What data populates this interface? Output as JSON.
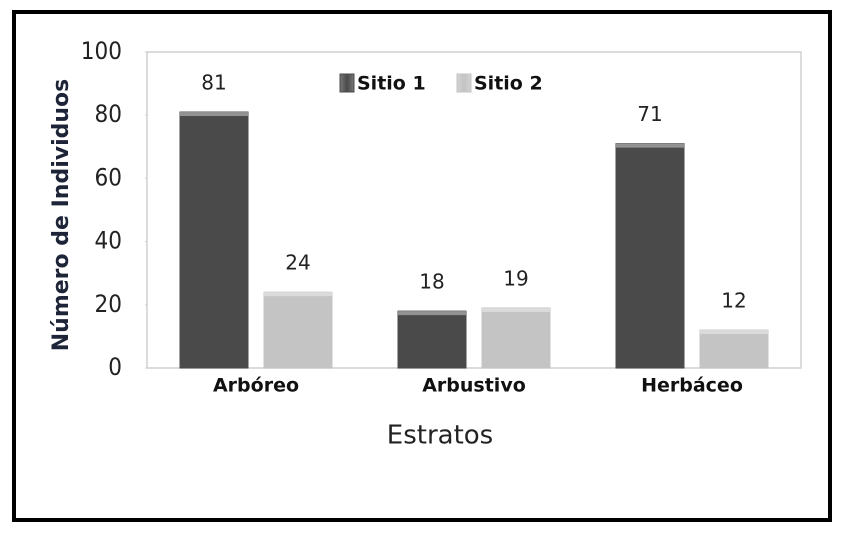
{
  "chart_data": {
    "type": "bar",
    "categories": [
      "Arbóreo",
      "Arbustivo",
      "Herbáceo"
    ],
    "series": [
      {
        "name": "Sitio 1",
        "color": "#4a4a4a",
        "values": [
          81,
          18,
          71
        ]
      },
      {
        "name": "Sitio 2",
        "color": "#c4c4c4",
        "values": [
          24,
          19,
          12
        ]
      }
    ],
    "y_label": "Número de Individuos",
    "x_label": "Estratos",
    "ylim": [
      0,
      100
    ],
    "yticks": [
      0,
      20,
      40,
      60,
      80,
      100
    ],
    "legend": "top"
  }
}
